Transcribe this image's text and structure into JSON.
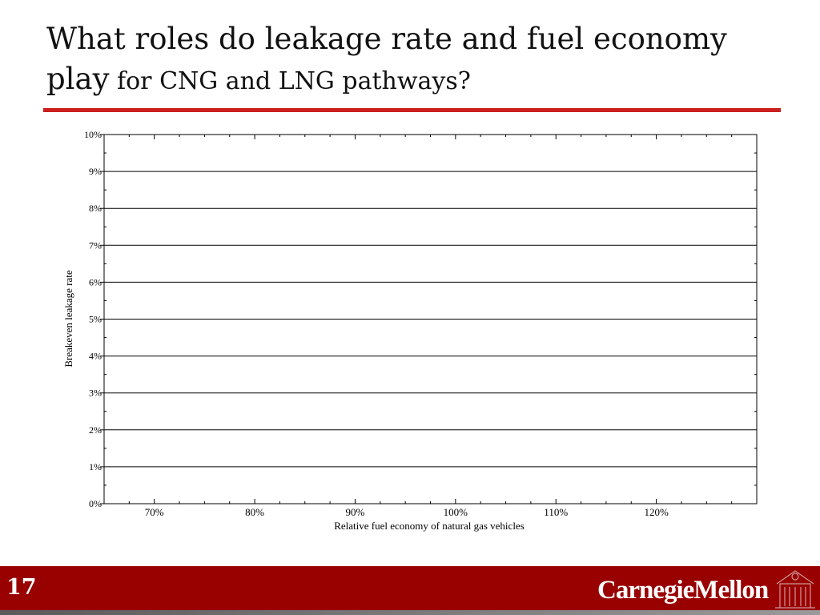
{
  "slide": {
    "title_line1": "What roles do leakage rate and fuel economy",
    "title_line2_a": "play",
    "title_line2_b": " for CNG and LNG pathways?",
    "number": "17",
    "logo": "CarnegieMellon",
    "colors": {
      "accent": "#cc1f1f",
      "footer": "#990000"
    }
  },
  "chart_data": {
    "type": "line",
    "title": "",
    "xlabel": "Relative fuel economy of natural gas vehicles",
    "ylabel": "Breakeven leakage rate",
    "xlim": [
      65,
      130
    ],
    "ylim": [
      0,
      10
    ],
    "x_ticks": [
      70,
      80,
      90,
      100,
      110,
      120
    ],
    "x_tick_labels": [
      "70%",
      "80%",
      "90%",
      "100%",
      "110%",
      "120%"
    ],
    "y_ticks": [
      0,
      1,
      2,
      3,
      4,
      5,
      6,
      7,
      8,
      9,
      10
    ],
    "y_tick_labels": [
      "0%",
      "1%",
      "2%",
      "3%",
      "4%",
      "5%",
      "6%",
      "7%",
      "8%",
      "9%",
      "10%"
    ],
    "grid": "horizontal",
    "series": []
  }
}
